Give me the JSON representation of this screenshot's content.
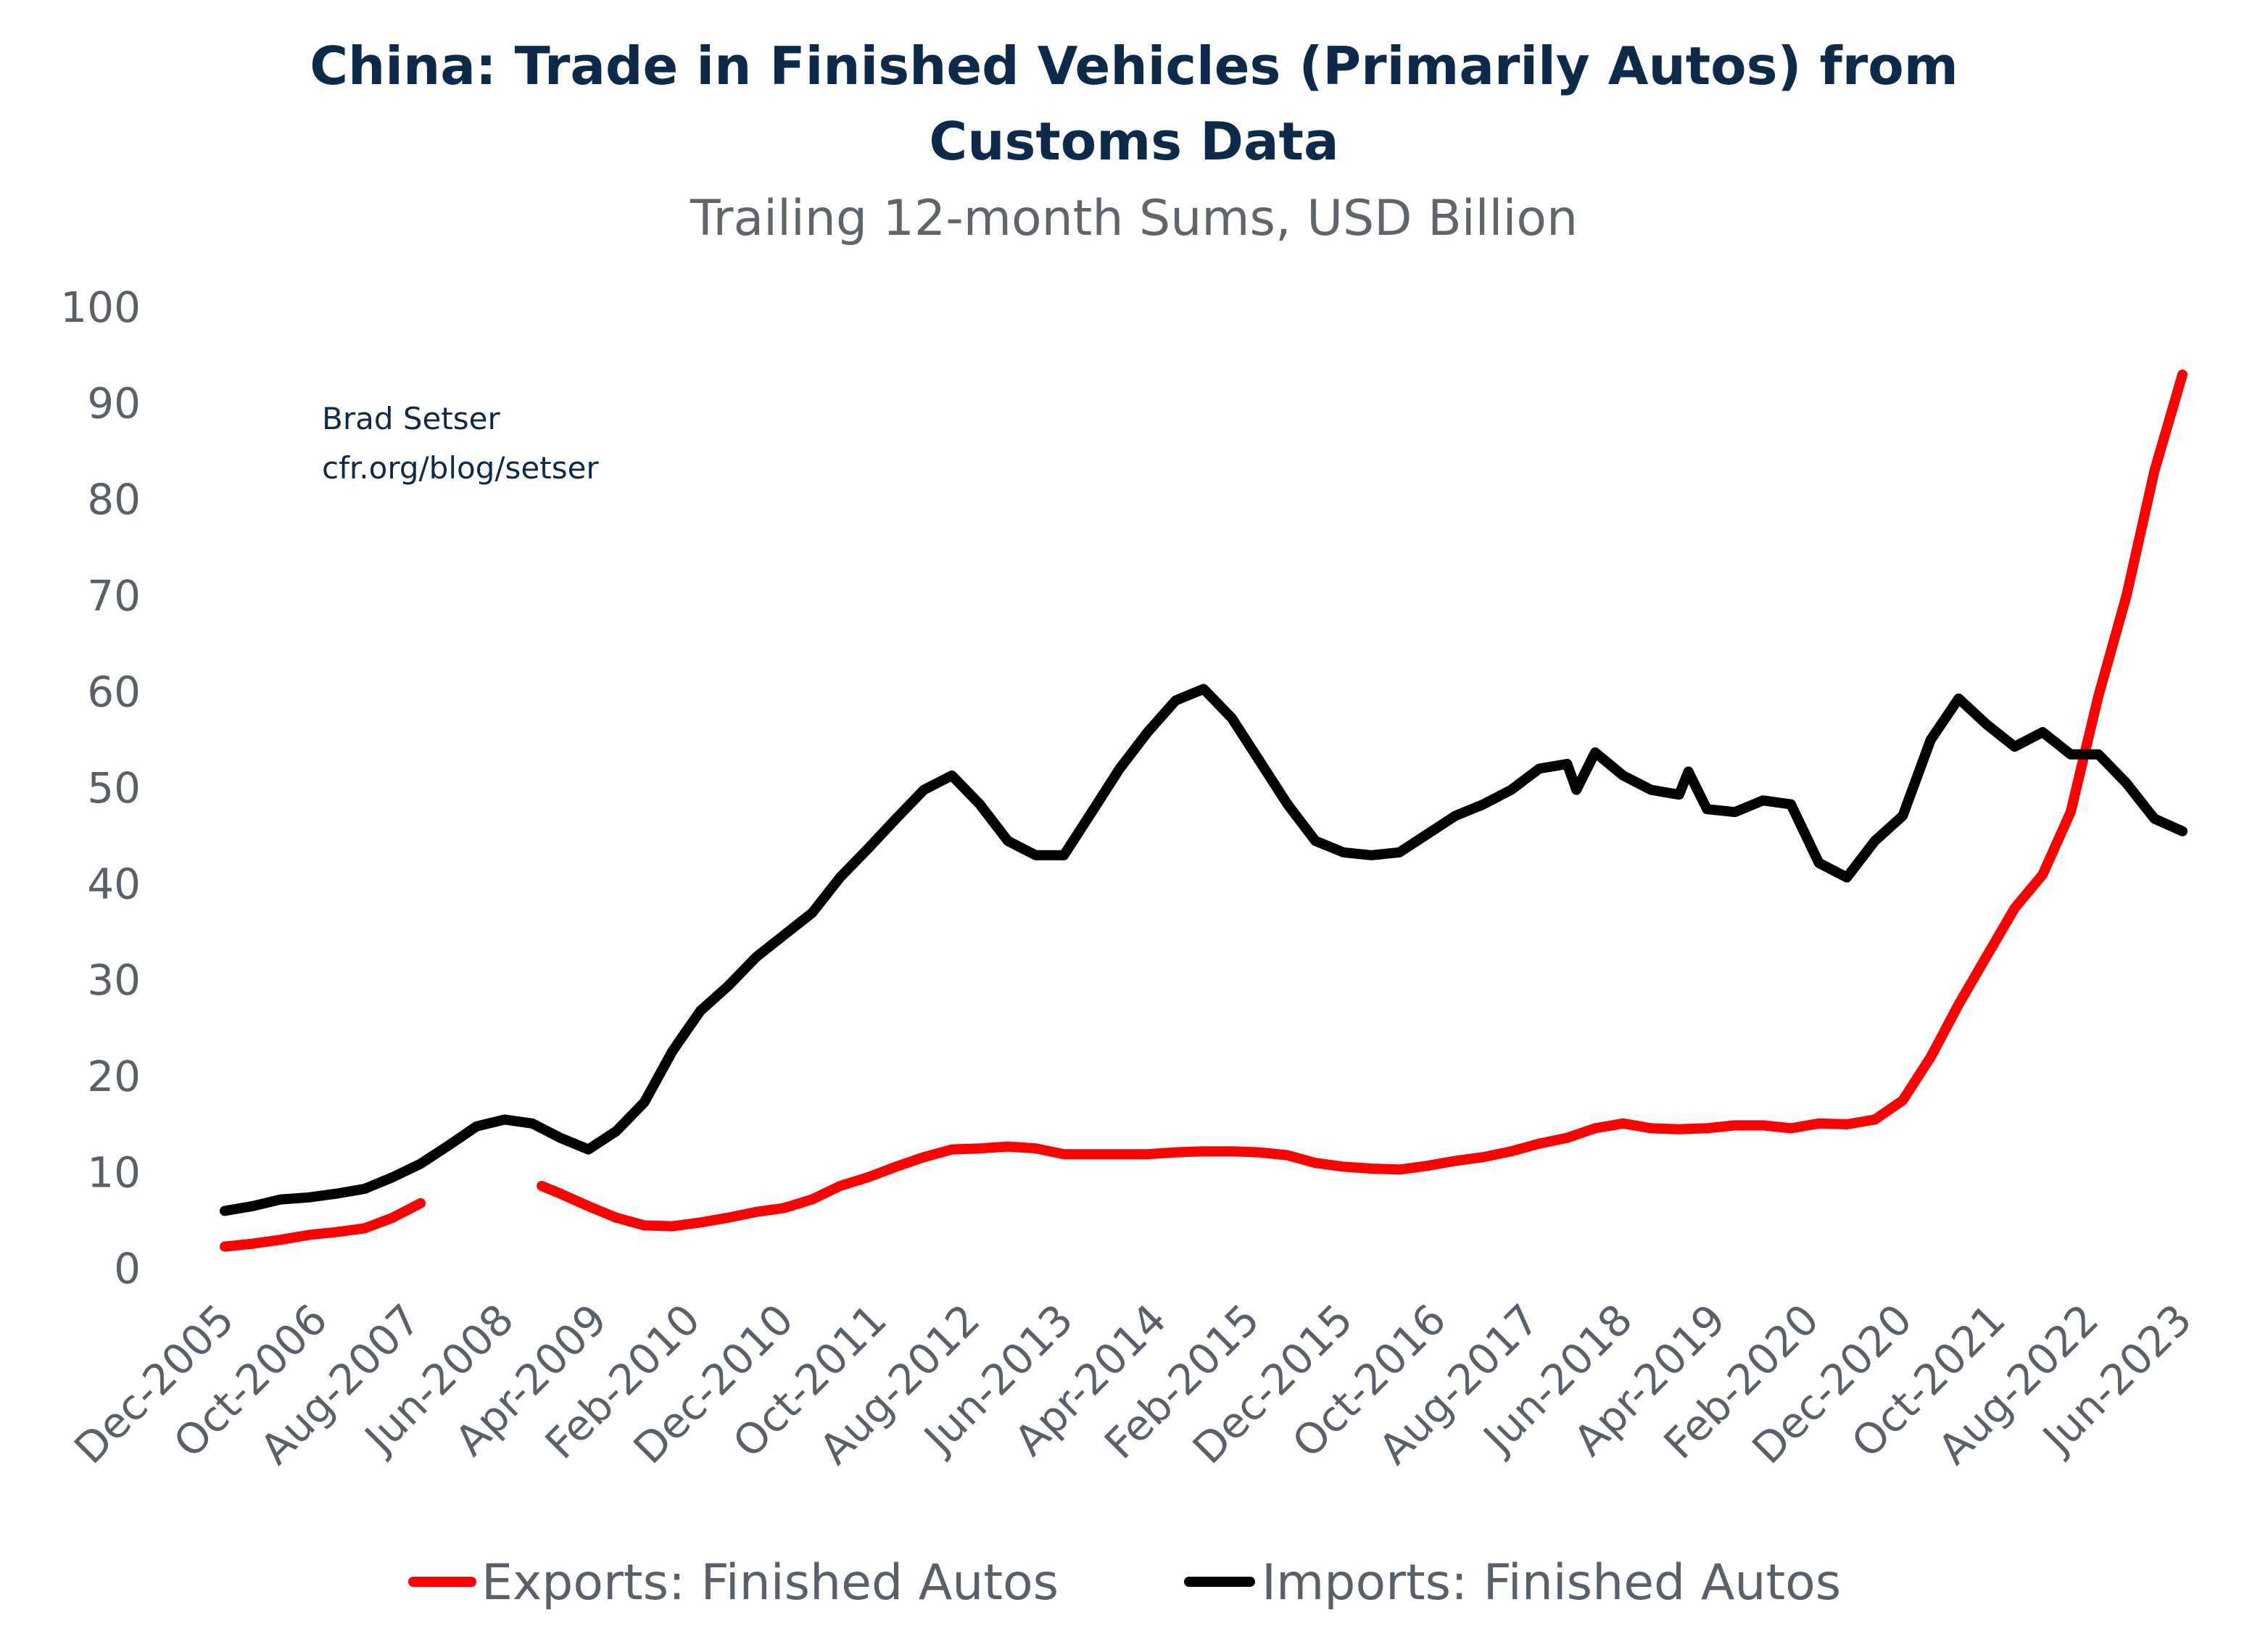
{
  "chart_data": {
    "type": "line",
    "title": "China: Trade in Finished Vehicles (Primarily Autos) from Customs Data",
    "title_lines": [
      "China: Trade in Finished Vehicles (Primarily Autos) from",
      "Customs Data"
    ],
    "subtitle": "Trailing 12-month Sums, USD Billion",
    "annotation": [
      "Brad Setser",
      "cfr.org/blog/setser"
    ],
    "xlabel": "",
    "ylabel": "",
    "ylim": [
      0,
      100
    ],
    "yticks": [
      0,
      10,
      20,
      30,
      40,
      50,
      60,
      70,
      80,
      90,
      100
    ],
    "xticks": [
      "Dec-2005",
      "Oct-2006",
      "Aug-2007",
      "Jun-2008",
      "Apr-2009",
      "Feb-2010",
      "Dec-2010",
      "Oct-2011",
      "Aug-2012",
      "Jun-2013",
      "Apr-2014",
      "Feb-2015",
      "Dec-2015",
      "Oct-2016",
      "Aug-2017",
      "Jun-2018",
      "Apr-2019",
      "Feb-2020",
      "Dec-2020",
      "Oct-2021",
      "Aug-2022",
      "Jun-2023"
    ],
    "xlim": [
      "Dec-2005",
      "Jun-2023"
    ],
    "grid": false,
    "legend_position": "bottom",
    "series": [
      {
        "name": "Exports: Finished Autos",
        "color": "#ff0000",
        "points": [
          [
            "Dec-2005",
            2.3
          ],
          [
            "Mar-2006",
            2.6
          ],
          [
            "Jun-2006",
            3.0
          ],
          [
            "Sep-2006",
            3.5
          ],
          [
            "Dec-2006",
            3.8
          ],
          [
            "Mar-2007",
            4.2
          ],
          [
            "Jun-2007",
            5.3
          ],
          [
            "Sep-2007",
            6.8
          ],
          null,
          [
            "Oct-2008",
            8.6
          ],
          [
            "Dec-2008",
            7.8
          ],
          [
            "Mar-2009",
            6.5
          ],
          [
            "Jun-2009",
            5.3
          ],
          [
            "Sep-2009",
            4.5
          ],
          [
            "Dec-2009",
            4.4
          ],
          [
            "Mar-2010",
            4.8
          ],
          [
            "Jun-2010",
            5.3
          ],
          [
            "Sep-2010",
            5.9
          ],
          [
            "Dec-2010",
            6.3
          ],
          [
            "Mar-2011",
            7.2
          ],
          [
            "Jun-2011",
            8.6
          ],
          [
            "Sep-2011",
            9.5
          ],
          [
            "Dec-2011",
            10.6
          ],
          [
            "Mar-2012",
            11.6
          ],
          [
            "Jun-2012",
            12.4
          ],
          [
            "Sep-2012",
            12.5
          ],
          [
            "Dec-2012",
            12.7
          ],
          [
            "Mar-2013",
            12.5
          ],
          [
            "Jun-2013",
            11.9
          ],
          [
            "Sep-2013",
            11.9
          ],
          [
            "Dec-2013",
            11.9
          ],
          [
            "Mar-2014",
            11.9
          ],
          [
            "Jun-2014",
            12.1
          ],
          [
            "Sep-2014",
            12.2
          ],
          [
            "Dec-2014",
            12.2
          ],
          [
            "Mar-2015",
            12.1
          ],
          [
            "Jun-2015",
            11.8
          ],
          [
            "Sep-2015",
            11.0
          ],
          [
            "Dec-2015",
            10.6
          ],
          [
            "Mar-2016",
            10.4
          ],
          [
            "Jun-2016",
            10.3
          ],
          [
            "Sep-2016",
            10.7
          ],
          [
            "Dec-2016",
            11.2
          ],
          [
            "Mar-2017",
            11.6
          ],
          [
            "Jun-2017",
            12.2
          ],
          [
            "Sep-2017",
            13.0
          ],
          [
            "Dec-2017",
            13.6
          ],
          [
            "Mar-2018",
            14.6
          ],
          [
            "Jun-2018",
            15.1
          ],
          [
            "Sep-2018",
            14.6
          ],
          [
            "Dec-2018",
            14.5
          ],
          [
            "Mar-2019",
            14.6
          ],
          [
            "Jun-2019",
            14.9
          ],
          [
            "Sep-2019",
            14.9
          ],
          [
            "Dec-2019",
            14.6
          ],
          [
            "Mar-2020",
            15.1
          ],
          [
            "Jun-2020",
            15.0
          ],
          [
            "Sep-2020",
            15.5
          ],
          [
            "Dec-2020",
            17.5
          ],
          [
            "Mar-2021",
            22.0
          ],
          [
            "Jun-2021",
            27.5
          ],
          [
            "Sep-2021",
            32.5
          ],
          [
            "Dec-2021",
            37.5
          ],
          [
            "Mar-2022",
            41.0
          ],
          [
            "Jun-2022",
            47.5
          ],
          [
            "Sep-2022",
            59.6
          ],
          [
            "Dec-2022",
            70.0
          ],
          [
            "Mar-2023",
            83.0
          ],
          [
            "Jun-2023",
            93.0
          ]
        ]
      },
      {
        "name": "Imports: Finished Autos",
        "color": "#000000",
        "points": [
          [
            "Dec-2005",
            6.0
          ],
          [
            "Mar-2006",
            6.5
          ],
          [
            "Jun-2006",
            7.2
          ],
          [
            "Sep-2006",
            7.4
          ],
          [
            "Dec-2006",
            7.8
          ],
          [
            "Mar-2007",
            8.3
          ],
          [
            "Jun-2007",
            9.5
          ],
          [
            "Sep-2007",
            10.9
          ],
          [
            "Dec-2007",
            12.8
          ],
          [
            "Mar-2008",
            14.8
          ],
          [
            "Jun-2008",
            15.5
          ],
          [
            "Sep-2008",
            15.1
          ],
          [
            "Dec-2008",
            13.6
          ],
          [
            "Mar-2009",
            12.4
          ],
          [
            "Jun-2009",
            14.3
          ],
          [
            "Sep-2009",
            17.3
          ],
          [
            "Dec-2009",
            22.6
          ],
          [
            "Mar-2010",
            26.8
          ],
          [
            "Jun-2010",
            29.4
          ],
          [
            "Sep-2010",
            32.4
          ],
          [
            "Dec-2010",
            34.7
          ],
          [
            "Mar-2011",
            37.0
          ],
          [
            "Jun-2011",
            40.7
          ],
          [
            "Sep-2011",
            43.7
          ],
          [
            "Dec-2011",
            46.8
          ],
          [
            "Mar-2012",
            49.8
          ],
          [
            "Jun-2012",
            51.3
          ],
          [
            "Sep-2012",
            48.3
          ],
          [
            "Dec-2012",
            44.5
          ],
          [
            "Mar-2013",
            43.0
          ],
          [
            "Jun-2013",
            43.0
          ],
          [
            "Sep-2013",
            47.5
          ],
          [
            "Dec-2013",
            52.0
          ],
          [
            "Mar-2014",
            55.8
          ],
          [
            "Jun-2014",
            59.1
          ],
          [
            "Sep-2014",
            60.3
          ],
          [
            "Dec-2014",
            57.3
          ],
          [
            "Mar-2015",
            52.8
          ],
          [
            "Jun-2015",
            48.3
          ],
          [
            "Sep-2015",
            44.5
          ],
          [
            "Dec-2015",
            43.3
          ],
          [
            "Mar-2016",
            43.0
          ],
          [
            "Jun-2016",
            43.3
          ],
          [
            "Sep-2016",
            45.2
          ],
          [
            "Dec-2016",
            47.1
          ],
          [
            "Mar-2017",
            48.3
          ],
          [
            "Jun-2017",
            49.8
          ],
          [
            "Sep-2017",
            52.0
          ],
          [
            "Dec-2017",
            52.5
          ],
          [
            "Jan-2018",
            49.8
          ],
          [
            "Mar-2018",
            53.7
          ],
          [
            "Jun-2018",
            51.3
          ],
          [
            "Sep-2018",
            49.8
          ],
          [
            "Dec-2018",
            49.3
          ],
          [
            "Jan-2019",
            51.7
          ],
          [
            "Mar-2019",
            47.8
          ],
          [
            "Jun-2019",
            47.5
          ],
          [
            "Sep-2019",
            48.7
          ],
          [
            "Dec-2019",
            48.3
          ],
          [
            "Mar-2020",
            42.2
          ],
          [
            "Jun-2020",
            40.7
          ],
          [
            "Sep-2020",
            44.5
          ],
          [
            "Dec-2020",
            47.1
          ],
          [
            "Mar-2021",
            55.0
          ],
          [
            "Jun-2021",
            59.3
          ],
          [
            "Sep-2021",
            56.6
          ],
          [
            "Dec-2021",
            54.3
          ],
          [
            "Mar-2022",
            55.8
          ],
          [
            "Jun-2022",
            53.5
          ],
          [
            "Sep-2022",
            53.5
          ],
          [
            "Dec-2022",
            50.5
          ],
          [
            "Mar-2023",
            46.8
          ],
          [
            "Jun-2023",
            45.5
          ]
        ]
      }
    ]
  }
}
